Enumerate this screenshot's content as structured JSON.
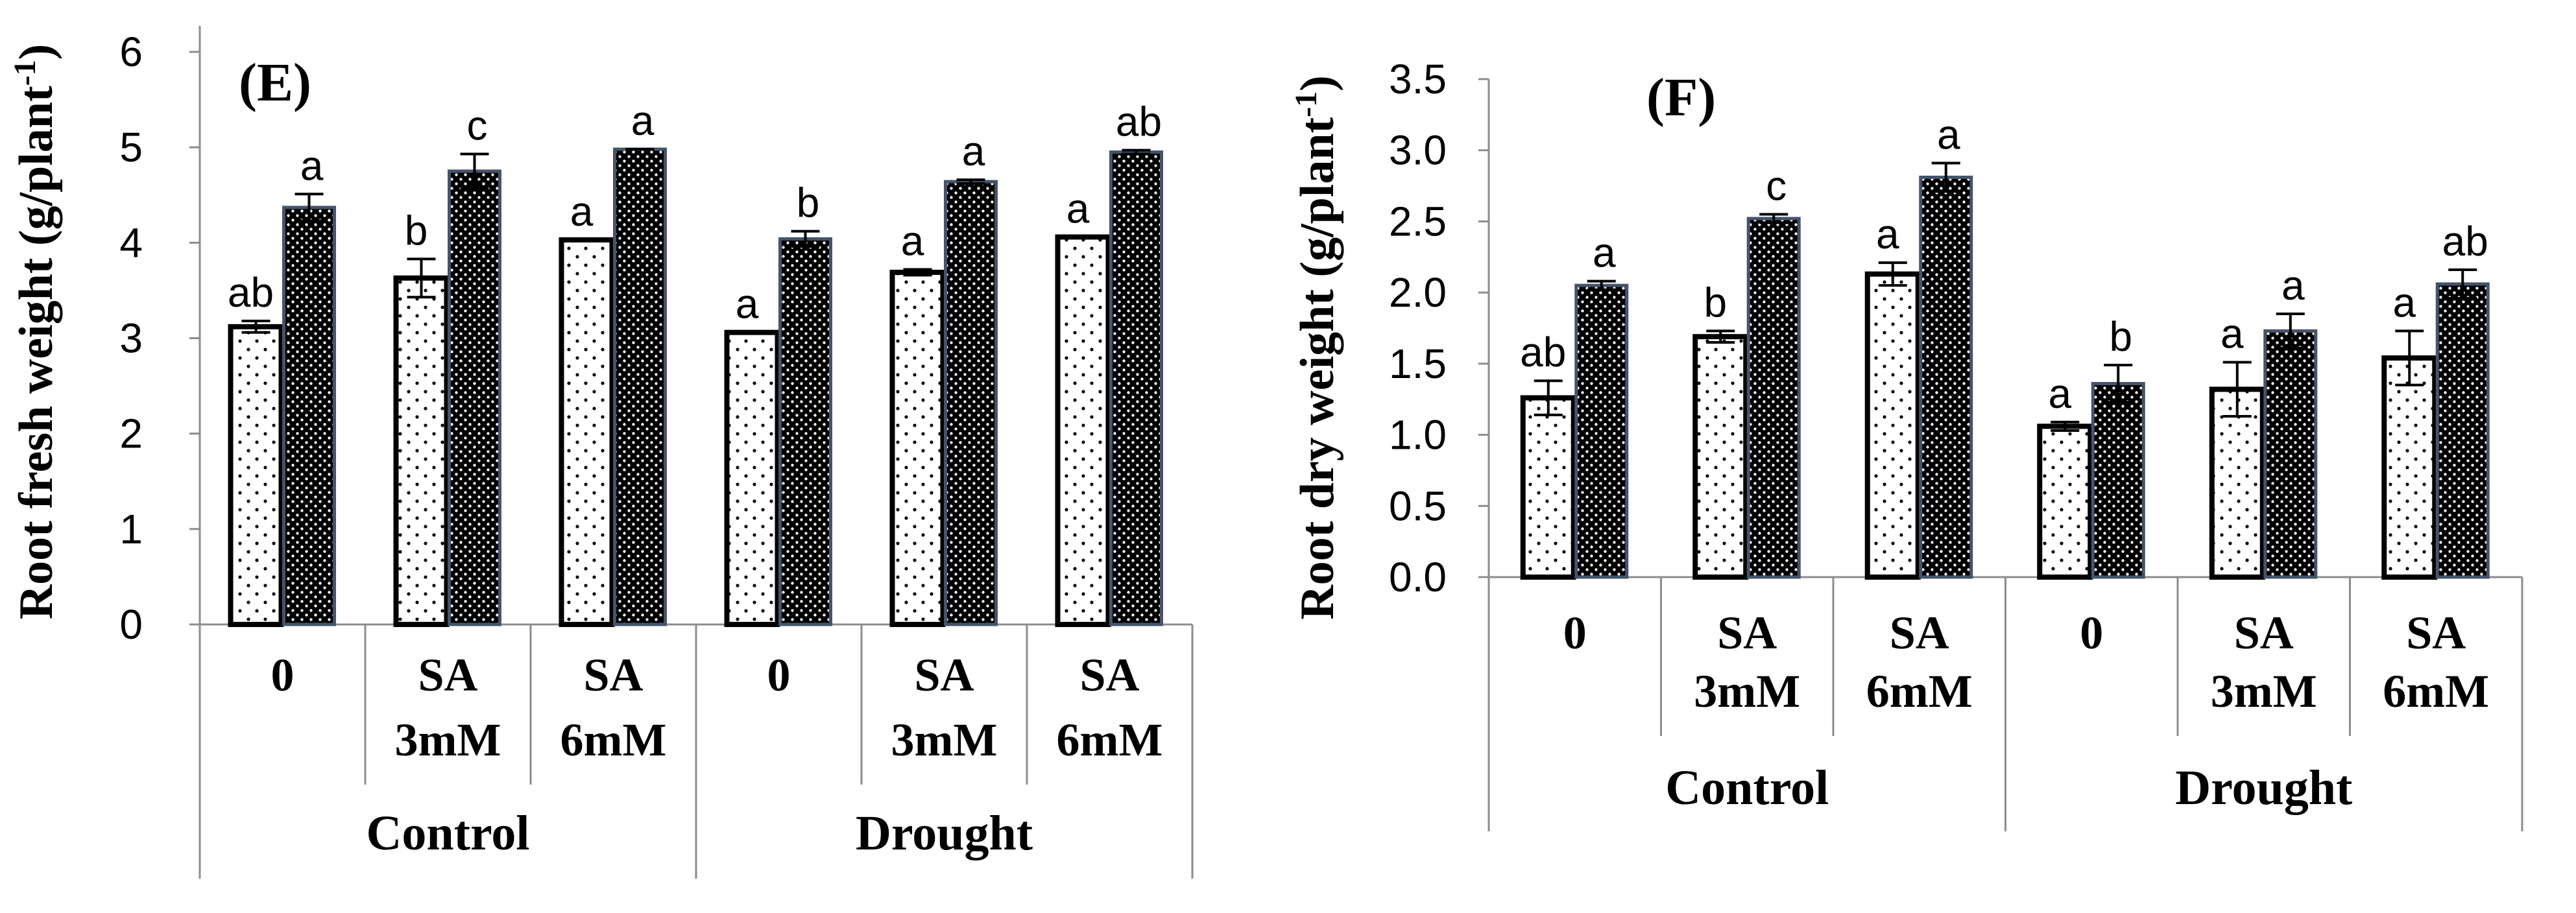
{
  "chart_data": [
    {
      "type": "bar",
      "title": "(E)",
      "ylabel": "Root fresh weight (g/plant",
      "ylabel_sup": "-1",
      "ylabel_close": ")",
      "ylim": [
        0,
        6
      ],
      "yticks": [
        0,
        1,
        2,
        3,
        4,
        5,
        6
      ],
      "ytick_labels": [
        "0",
        "1",
        "2",
        "3",
        "4",
        "5",
        "6"
      ],
      "groups": [
        "Control",
        "Drought"
      ],
      "categories": [
        [
          "0"
        ],
        [
          "SA",
          "3mM"
        ],
        [
          "SA",
          "6mM"
        ],
        [
          "0"
        ],
        [
          "SA",
          "3mM"
        ],
        [
          "SA",
          "6mM"
        ]
      ],
      "series": [
        {
          "name": "dotted-light",
          "values": [
            3.12,
            3.63,
            4.03,
            3.06,
            3.69,
            4.06
          ],
          "errors": [
            0.06,
            0.2,
            0.0,
            0.0,
            0.03,
            0.0
          ],
          "labels": [
            "ab",
            "b",
            "a",
            "a",
            "a",
            "a"
          ]
        },
        {
          "name": "dotted-dark",
          "values": [
            4.37,
            4.75,
            4.98,
            4.04,
            4.64,
            4.95
          ],
          "errors": [
            0.14,
            0.18,
            0.0,
            0.08,
            0.02,
            0.02
          ],
          "labels": [
            "a",
            "c",
            "a",
            "b",
            "a",
            "ab"
          ]
        }
      ]
    },
    {
      "type": "bar",
      "title": "(F)",
      "ylabel": "Root dry weight (g/plant",
      "ylabel_sup": "-1",
      "ylabel_close": ")",
      "ylim": [
        0,
        3.5
      ],
      "yticks": [
        0,
        0.5,
        1,
        1.5,
        2,
        2.5,
        3,
        3.5
      ],
      "ytick_labels": [
        "0.0",
        "0.5",
        "1.0",
        "1.5",
        "2.0",
        "2.5",
        "3.0",
        "3.5"
      ],
      "groups": [
        "Control",
        "Drought"
      ],
      "categories": [
        [
          "0"
        ],
        [
          "SA",
          "3mM"
        ],
        [
          "SA",
          "6mM"
        ],
        [
          "0"
        ],
        [
          "SA",
          "3mM"
        ],
        [
          "SA",
          "6mM"
        ]
      ],
      "series": [
        {
          "name": "dotted-light",
          "values": [
            1.26,
            1.69,
            2.13,
            1.06,
            1.32,
            1.54
          ],
          "errors": [
            0.12,
            0.04,
            0.08,
            0.03,
            0.19,
            0.19
          ],
          "labels": [
            "ab",
            "b",
            "a",
            "a",
            "a",
            "a"
          ]
        },
        {
          "name": "dotted-dark",
          "values": [
            2.05,
            2.52,
            2.81,
            1.36,
            1.73,
            2.06
          ],
          "errors": [
            0.03,
            0.03,
            0.1,
            0.13,
            0.12,
            0.1
          ],
          "labels": [
            "a",
            "c",
            "a",
            "b",
            "a",
            "ab"
          ]
        }
      ]
    }
  ]
}
